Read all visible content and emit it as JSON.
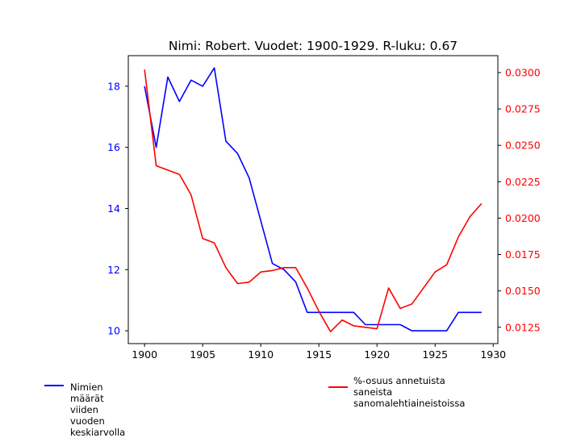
{
  "chart_data": {
    "type": "line",
    "title": "Nimi: Robert. Vuodet: 1900-1929. R-luku: 0.67",
    "x": [
      1900,
      1901,
      1902,
      1903,
      1904,
      1905,
      1906,
      1907,
      1908,
      1909,
      1910,
      1911,
      1912,
      1913,
      1914,
      1915,
      1916,
      1917,
      1918,
      1919,
      1920,
      1921,
      1922,
      1923,
      1924,
      1925,
      1926,
      1927,
      1928,
      1929
    ],
    "xlim": [
      1898.6,
      1930.4
    ],
    "xticks": [
      1900,
      1905,
      1910,
      1915,
      1920,
      1925,
      1930
    ],
    "left_axis": {
      "ylim": [
        9.58,
        19.0
      ],
      "ticks": [
        10,
        12,
        14,
        16,
        18
      ],
      "color": "#0000ff"
    },
    "right_axis": {
      "ylim": [
        0.01138,
        0.03116
      ],
      "ticks": [
        0.0125,
        0.015,
        0.0175,
        0.02,
        0.0225,
        0.025,
        0.0275,
        0.03
      ],
      "tick_labels": [
        "0.0125",
        "0.0150",
        "0.0175",
        "0.0200",
        "0.0225",
        "0.0250",
        "0.0275",
        "0.0300"
      ],
      "color": "#ff0000"
    },
    "series": [
      {
        "name": "Nimien määrät viiden vuoden keskiarvolla",
        "axis": "left",
        "color": "#0000ff",
        "values": [
          18.0,
          16.0,
          18.3,
          17.5,
          18.2,
          18.0,
          18.6,
          16.2,
          15.8,
          15.0,
          13.6,
          12.2,
          12.0,
          11.6,
          10.6,
          10.6,
          10.6,
          10.6,
          10.6,
          10.2,
          10.2,
          10.2,
          10.2,
          10.0,
          10.0,
          10.0,
          10.0,
          10.6,
          10.6,
          10.6
        ]
      },
      {
        "name": "%-osuus annetuista saneista\n sanomalehtiaineistoissa",
        "axis": "right",
        "color": "#ff0000",
        "values": [
          0.0302,
          0.0236,
          0.0233,
          0.023,
          0.0216,
          0.0186,
          0.0183,
          0.0166,
          0.0155,
          0.0156,
          0.0163,
          0.0164,
          0.0166,
          0.0166,
          0.0152,
          0.0136,
          0.0122,
          0.013,
          0.0126,
          0.0125,
          0.0124,
          0.0152,
          0.0138,
          0.0141,
          0.0152,
          0.0163,
          0.0168,
          0.0187,
          0.0201,
          0.021
        ]
      }
    ],
    "grid": false,
    "legend_position": "bottom"
  }
}
